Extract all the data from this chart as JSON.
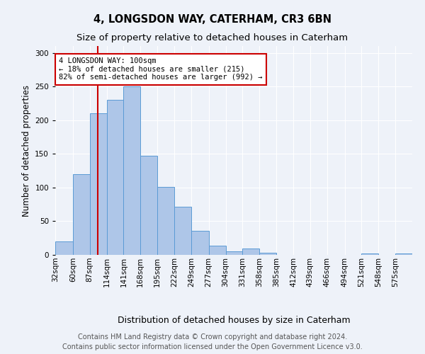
{
  "title1": "4, LONGSDON WAY, CATERHAM, CR3 6BN",
  "title2": "Size of property relative to detached houses in Caterham",
  "xlabel": "Distribution of detached houses by size in Caterham",
  "ylabel": "Number of detached properties",
  "bin_labels": [
    "32sqm",
    "60sqm",
    "87sqm",
    "114sqm",
    "141sqm",
    "168sqm",
    "195sqm",
    "222sqm",
    "249sqm",
    "277sqm",
    "304sqm",
    "331sqm",
    "358sqm",
    "385sqm",
    "412sqm",
    "439sqm",
    "466sqm",
    "494sqm",
    "521sqm",
    "548sqm",
    "575sqm"
  ],
  "bin_edges": [
    32,
    60,
    87,
    114,
    141,
    168,
    195,
    222,
    249,
    277,
    304,
    331,
    358,
    385,
    412,
    439,
    466,
    494,
    521,
    548,
    575
  ],
  "bar_heights": [
    20,
    120,
    210,
    230,
    250,
    147,
    101,
    71,
    36,
    14,
    5,
    9,
    3,
    0,
    0,
    0,
    0,
    0,
    2,
    0,
    2
  ],
  "bar_color": "#aec6e8",
  "bar_edge_color": "#5b9bd5",
  "ylim": [
    0,
    310
  ],
  "yticks": [
    0,
    50,
    100,
    150,
    200,
    250,
    300
  ],
  "property_line_x": 100,
  "property_line_color": "#cc0000",
  "annotation_text": "4 LONGSDON WAY: 100sqm\n← 18% of detached houses are smaller (215)\n82% of semi-detached houses are larger (992) →",
  "annotation_box_color": "#ffffff",
  "annotation_box_edge_color": "#cc0000",
  "footer1": "Contains HM Land Registry data © Crown copyright and database right 2024.",
  "footer2": "Contains public sector information licensed under the Open Government Licence v3.0.",
  "background_color": "#eef2f9",
  "grid_color": "#ffffff",
  "title1_fontsize": 10.5,
  "title2_fontsize": 9.5,
  "axis_label_fontsize": 8.5,
  "tick_fontsize": 7.5,
  "annotation_fontsize": 7.5,
  "footer_fontsize": 7.0
}
